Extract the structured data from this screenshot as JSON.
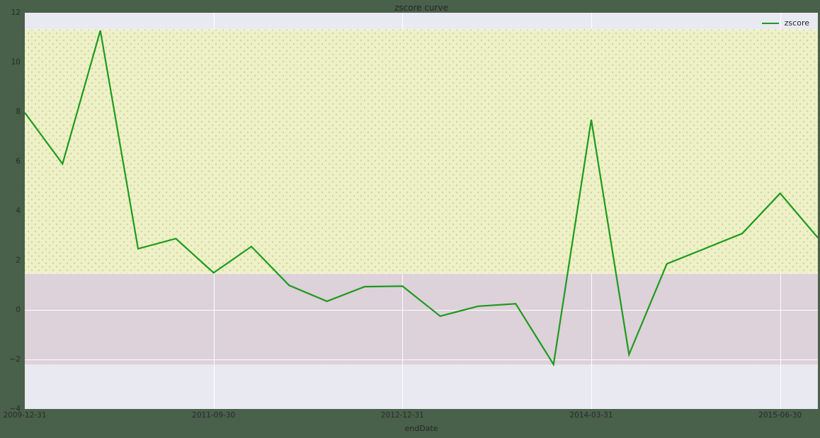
{
  "figure": {
    "title": "zscore curve",
    "xlabel": "endDate",
    "legend_label": "zscore"
  },
  "colors": {
    "outer_background": "#49604a",
    "plot_background": "#e9e9f2",
    "upper_band": "#eef0c7",
    "lower_band": "#ddd1da",
    "gridline": "#ffffff",
    "line": "#1d9b1d",
    "text": "#262626"
  },
  "chart_data": {
    "type": "line",
    "title": "zscore curve",
    "xlabel": "endDate",
    "ylabel": "",
    "xlim": [
      0,
      21
    ],
    "ylim": [
      -4,
      12
    ],
    "y_ticks": [
      -4,
      -2,
      0,
      2,
      4,
      6,
      8,
      10,
      12
    ],
    "x_tick_labels": [
      "2009-12-31",
      "2011-09-30",
      "2012-12-31",
      "2014-03-31",
      "2015-06-30"
    ],
    "x_tick_positions": [
      0,
      5,
      10,
      15,
      20
    ],
    "grid": true,
    "legend_position": "top-right",
    "series": [
      {
        "name": "zscore",
        "color": "#1d9b1d",
        "values": [
          7.97,
          5.9,
          11.28,
          2.47,
          2.88,
          1.5,
          2.56,
          0.99,
          0.35,
          0.94,
          0.96,
          -0.25,
          0.15,
          0.25,
          -2.2,
          7.68,
          -1.8,
          1.86,
          2.47,
          3.09,
          4.71,
          2.91
        ]
      }
    ],
    "bands": [
      {
        "name": "upper-region",
        "from": 1.5,
        "to": 11.34,
        "color": "#eef0c7"
      },
      {
        "name": "lower-region",
        "from": -2.2,
        "to": 1.5,
        "color": "#ddd1da"
      }
    ]
  }
}
